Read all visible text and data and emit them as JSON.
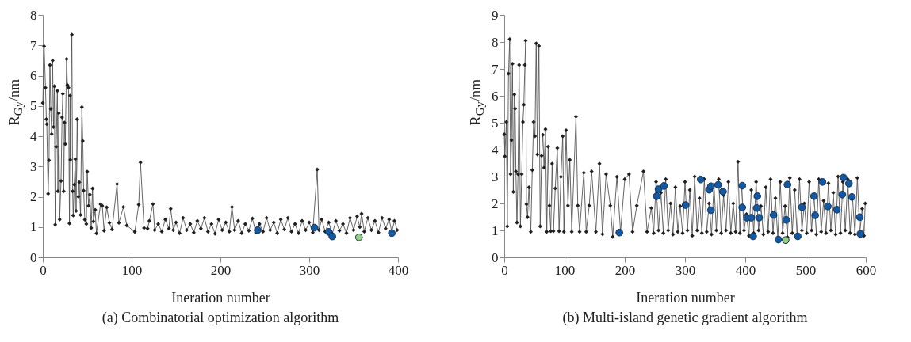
{
  "chart_data": [
    {
      "type": "line",
      "title": "(a) Combinatorial optimization algorithm",
      "xlabel": "Ineration number",
      "ylabel": "R$_{Gy}$/nm",
      "xlim": [
        0,
        400
      ],
      "xticks": [
        0,
        100,
        200,
        300,
        400
      ],
      "ylim": [
        0,
        8
      ],
      "yticks": [
        0,
        1,
        2,
        3,
        4,
        5,
        6,
        7,
        8
      ],
      "grid": false,
      "series": [
        {
          "marker": "diamond",
          "color": "#231f20",
          "x": [
            0,
            1.5,
            3,
            4,
            4.5,
            6,
            7,
            8,
            9,
            10,
            11,
            12,
            13,
            14,
            15,
            16.4,
            17,
            18,
            19,
            20.5,
            21.7,
            22.6,
            23.5,
            24.4,
            25.3,
            26.8,
            27.7,
            29,
            30,
            30.7,
            31,
            32.7,
            33.6,
            34.2,
            35.4,
            36.6,
            37.5,
            38.7,
            40,
            41,
            42.5,
            44,
            45,
            46,
            47.3,
            49,
            50,
            51.5,
            53,
            54.5,
            56,
            57,
            59,
            60.4,
            65,
            67,
            69,
            72,
            75,
            78,
            83.6,
            85.7,
            90.8,
            94.6,
            103.6,
            108,
            110,
            114,
            118,
            120,
            124,
            126,
            130,
            134,
            138,
            142,
            144,
            147,
            150,
            154,
            158,
            162,
            166,
            170,
            174,
            178,
            182,
            186,
            190,
            194,
            198,
            202,
            206,
            210,
            213,
            216,
            220,
            224,
            228,
            232,
            236,
            240,
            244,
            248,
            252,
            256,
            260,
            264,
            268,
            272,
            276,
            280,
            284,
            288,
            292,
            296,
            300,
            304,
            309,
            311,
            314,
            318,
            322,
            326,
            330,
            334,
            338,
            342,
            346,
            350,
            354,
            357,
            359,
            362,
            366,
            370,
            374,
            378,
            382,
            386,
            390,
            393,
            396,
            399
          ],
          "values": [
            5.1,
            6.97,
            5.6,
            4.56,
            4.4,
            2.1,
            3.2,
            6.35,
            4.9,
            4.07,
            6.5,
            4.3,
            5.65,
            1.08,
            3.65,
            5.5,
            2.18,
            4.76,
            1.25,
            2.52,
            4.62,
            5.4,
            2.18,
            4.45,
            3.74,
            6.55,
            5.69,
            5.6,
            1.12,
            5.34,
            3.22,
            7.35,
            2.18,
            1.38,
            2.4,
            3.24,
            1.53,
            4.56,
            2.0,
            2.48,
            1.4,
            4.96,
            3.84,
            2.2,
            1.24,
            1.1,
            2.83,
            1.7,
            2.07,
            0.97,
            2.27,
            1.18,
            1.57,
            0.79,
            1.75,
            1.7,
            0.88,
            1.65,
            1.14,
            0.92,
            2.42,
            1.14,
            1.66,
            1.05,
            0.84,
            1.74,
            3.13,
            0.97,
            0.95,
            1.2,
            1.76,
            0.9,
            1.1,
            0.85,
            1.25,
            0.95,
            1.6,
            0.9,
            1.15,
            0.8,
            1.3,
            0.9,
            1.1,
            0.82,
            1.2,
            0.95,
            1.3,
            0.85,
            1.1,
            0.78,
            1.25,
            0.9,
            1.15,
            0.85,
            1.66,
            0.9,
            1.2,
            0.8,
            1.1,
            0.88,
            1.28,
            0.82,
            1.1,
            0.85,
            1.3,
            0.9,
            1.15,
            0.8,
            1.25,
            0.92,
            1.3,
            0.85,
            1.1,
            0.8,
            1.2,
            0.9,
            1.15,
            0.82,
            2.9,
            0.9,
            1.25,
            0.85,
            1.15,
            0.78,
            1.2,
            0.88,
            1.1,
            0.8,
            1.3,
            0.9,
            1.35,
            1.0,
            1.44,
            0.85,
            1.3,
            0.9,
            1.2,
            0.82,
            1.3,
            0.95,
            1.25,
            0.85,
            1.2,
            0.9
          ]
        },
        {
          "type": "scatter",
          "marker": "circle",
          "color": "#0f5aa8",
          "x": [
            242,
            306,
            322,
            326,
            393
          ],
          "values": [
            0.9,
            0.98,
            0.84,
            0.69,
            0.8
          ]
        },
        {
          "type": "scatter",
          "marker": "circle",
          "color": "#8fcf7f",
          "x": [
            356
          ],
          "values": [
            0.66
          ]
        }
      ]
    },
    {
      "type": "line",
      "title": "(b) Multi-island genetic gradient algorithm",
      "xlabel": "Ineration number",
      "ylabel": "R$_{Gy}$/nm",
      "xlim": [
        0,
        600
      ],
      "xticks": [
        0,
        100,
        200,
        300,
        400,
        500,
        600
      ],
      "ylim": [
        0,
        9
      ],
      "yticks": [
        0,
        1,
        2,
        3,
        4,
        5,
        6,
        7,
        8,
        9
      ],
      "grid": false,
      "series": [
        {
          "marker": "diamond",
          "color": "#231f20",
          "x": [
            0,
            1,
            3.5,
            5,
            7,
            9,
            10.5,
            12,
            13.6,
            15,
            16.7,
            18,
            19.3,
            21,
            22.8,
            24.6,
            26.8,
            29,
            31,
            32.5,
            34.2,
            35.5,
            36.8,
            38.6,
            41,
            44,
            46.5,
            48.7,
            51,
            53,
            55,
            57.5,
            59.6,
            62,
            64,
            66,
            68.4,
            70.6,
            72.8,
            75,
            77.2,
            79.4,
            81.6,
            84.6,
            88,
            91,
            94,
            97,
            99,
            102.6,
            105.7,
            108.8,
            112,
            119,
            122,
            125,
            132,
            136,
            141,
            145,
            152,
            158,
            163,
            169,
            176,
            180,
            187,
            193,
            200,
            207,
            213,
            220,
            231,
            237,
            244,
            248,
            252,
            256,
            260,
            264,
            268,
            272,
            276,
            280,
            284,
            288,
            292,
            296,
            300,
            304,
            308,
            312,
            316,
            320,
            324,
            328,
            332,
            336,
            340,
            344,
            348,
            352,
            356,
            360,
            364,
            368,
            372,
            376,
            380,
            384,
            388,
            391,
            394,
            398,
            402,
            406,
            410,
            414,
            418,
            422,
            426,
            430,
            434,
            438,
            442,
            446,
            450,
            454,
            458,
            462,
            466,
            470,
            474,
            478,
            482,
            486,
            490,
            494,
            498,
            502,
            506,
            510,
            514,
            518,
            522,
            526,
            530,
            534,
            538,
            542,
            546,
            550,
            554,
            558,
            562,
            566,
            570,
            574,
            578,
            582,
            586,
            590,
            594,
            597,
            599
          ],
          "values": [
            4.57,
            3.75,
            5.03,
            1.15,
            6.82,
            8.1,
            3.09,
            4.35,
            7.19,
            2.43,
            6.05,
            5.52,
            3.19,
            1.29,
            3.09,
            7.15,
            1.15,
            3.09,
            5.03,
            5.67,
            7.15,
            8.05,
            1.97,
            1.49,
            2.6,
            0.95,
            3.24,
            5.03,
            4.5,
            7.95,
            3.82,
            7.85,
            1.15,
            3.77,
            4.55,
            3.33,
            4.76,
            0.95,
            4.11,
            1.92,
            0.97,
            3.48,
            0.97,
            2.56,
            4.06,
            0.97,
            2.99,
            4.5,
            0.95,
            4.72,
            1.92,
            3.62,
            0.95,
            5.23,
            1.92,
            0.95,
            3.14,
            0.95,
            1.92,
            3.19,
            0.95,
            3.48,
            0.86,
            3.09,
            1.92,
            0.76,
            2.99,
            0.95,
            2.9,
            3.09,
            0.95,
            1.92,
            3.19,
            0.95,
            1.83,
            0.9,
            2.8,
            1.0,
            2.4,
            0.9,
            2.9,
            1.0,
            2.0,
            0.85,
            2.6,
            0.95,
            1.9,
            0.9,
            2.8,
            1.0,
            2.5,
            0.8,
            3.0,
            1.0,
            2.2,
            0.9,
            2.9,
            0.95,
            2.0,
            0.85,
            2.7,
            1.0,
            2.9,
            0.9,
            2.3,
            1.0,
            2.8,
            0.9,
            2.0,
            0.95,
            3.55,
            0.9,
            2.7,
            1.0,
            1.6,
            0.8,
            2.5,
            0.9,
            2.8,
            1.0,
            1.9,
            0.85,
            2.6,
            0.95,
            2.9,
            0.9,
            2.2,
            0.7,
            2.8,
            0.9,
            1.9,
            0.75,
            2.95,
            0.9,
            2.5,
            0.8,
            2.9,
            1.0,
            2.0,
            0.9,
            2.8,
            1.0,
            2.3,
            0.85,
            2.9,
            0.95,
            2.1,
            0.9,
            2.75,
            1.0,
            2.4,
            0.85,
            3.0,
            0.9,
            2.8,
            1.0,
            2.9,
            0.9,
            2.2,
            0.85,
            2.95,
            0.9,
            1.8,
            0.8,
            2.0
          ]
        },
        {
          "type": "scatter",
          "marker": "circle",
          "color": "#0f5aa8",
          "x": [
            191,
            253,
            256,
            265,
            301,
            326,
            340,
            343,
            343,
            355,
            363,
            395,
            395,
            403,
            410,
            413,
            420,
            419,
            423,
            447,
            455,
            468,
            470,
            487,
            494,
            514,
            516,
            528,
            537,
            552,
            561,
            563,
            572,
            577,
            590,
            591
          ],
          "values": [
            0.92,
            2.27,
            2.53,
            2.65,
            1.94,
            2.89,
            2.51,
            2.64,
            1.75,
            2.69,
            2.44,
            2.66,
            1.85,
            1.47,
            1.47,
            0.78,
            2.27,
            1.83,
            1.47,
            1.57,
            0.66,
            1.39,
            2.7,
            0.78,
            1.86,
            2.27,
            1.56,
            2.8,
            1.89,
            1.77,
            2.33,
            2.96,
            2.74,
            2.24,
            1.49,
            0.87
          ]
        },
        {
          "type": "scatter",
          "marker": "circle",
          "color": "#8fcf7f",
          "x": [
            467
          ],
          "values": [
            0.64
          ]
        }
      ]
    }
  ]
}
